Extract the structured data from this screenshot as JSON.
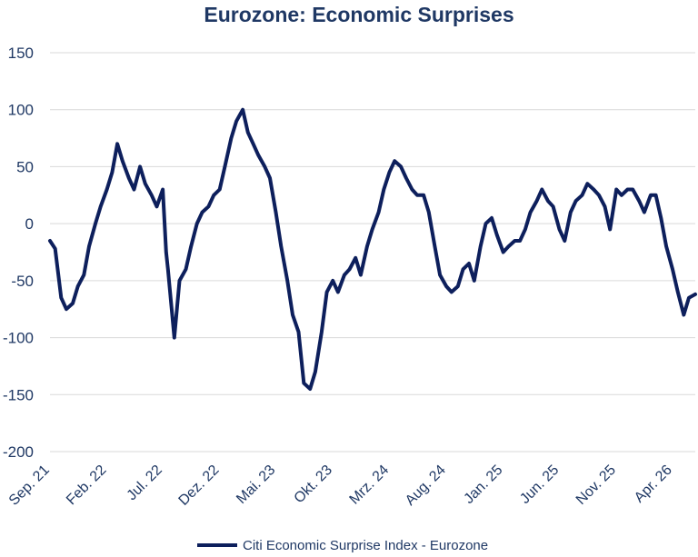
{
  "chart_data": {
    "type": "line",
    "title": "Eurozone: Economic Surprises",
    "xlabel": "",
    "ylabel": "",
    "ylim": [
      -200,
      150
    ],
    "yticks": [
      150,
      100,
      50,
      0,
      -50,
      -100,
      -150,
      -200
    ],
    "x_tick_labels": [
      "Sep. 21",
      "Feb. 22",
      "Jul. 22",
      "Dez. 22",
      "Mai. 23",
      "Okt. 23",
      "Mrz. 24",
      "Aug. 24",
      "Jan. 25",
      "Jun. 25",
      "Nov. 25",
      "Apr. 26"
    ],
    "x_range": [
      "2021-09",
      "2026-06"
    ],
    "grid": "horizontal",
    "legend_position": "bottom",
    "line_color": "#0d1f5c",
    "series": [
      {
        "name": "Citi Economic Surprise Index - Eurozone",
        "x": [
          "2021-09-01",
          "2021-09-15",
          "2021-10-01",
          "2021-10-15",
          "2021-11-01",
          "2021-11-15",
          "2021-12-01",
          "2021-12-15",
          "2022-01-01",
          "2022-01-15",
          "2022-02-01",
          "2022-02-15",
          "2022-03-01",
          "2022-03-15",
          "2022-04-01",
          "2022-04-15",
          "2022-05-01",
          "2022-05-15",
          "2022-06-01",
          "2022-06-15",
          "2022-07-01",
          "2022-07-10",
          "2022-07-15",
          "2022-08-01",
          "2022-08-15",
          "2022-09-01",
          "2022-09-15",
          "2022-10-01",
          "2022-10-15",
          "2022-11-01",
          "2022-11-15",
          "2022-12-01",
          "2022-12-15",
          "2023-01-01",
          "2023-01-15",
          "2023-02-01",
          "2023-02-15",
          "2023-03-01",
          "2023-03-15",
          "2023-04-01",
          "2023-04-15",
          "2023-05-01",
          "2023-05-15",
          "2023-06-01",
          "2023-06-15",
          "2023-07-01",
          "2023-07-15",
          "2023-08-01",
          "2023-08-15",
          "2023-09-01",
          "2023-09-15",
          "2023-10-01",
          "2023-10-15",
          "2023-11-01",
          "2023-11-15",
          "2023-12-01",
          "2023-12-15",
          "2024-01-01",
          "2024-01-15",
          "2024-02-01",
          "2024-02-15",
          "2024-03-01",
          "2024-03-15",
          "2024-04-01",
          "2024-04-15",
          "2024-05-01",
          "2024-05-15",
          "2024-06-01",
          "2024-06-15",
          "2024-07-01",
          "2024-07-15",
          "2024-08-01",
          "2024-08-15",
          "2024-09-01",
          "2024-09-15",
          "2024-10-01",
          "2024-10-15",
          "2024-11-01",
          "2024-11-15",
          "2024-12-01",
          "2024-12-15",
          "2025-01-01",
          "2025-01-15",
          "2025-02-01",
          "2025-02-15",
          "2025-03-01",
          "2025-03-15",
          "2025-04-01",
          "2025-04-15",
          "2025-05-01",
          "2025-05-15",
          "2025-06-01",
          "2025-06-15",
          "2025-07-01",
          "2025-07-15",
          "2025-08-01",
          "2025-08-15",
          "2025-09-01",
          "2025-09-15",
          "2025-10-01",
          "2025-10-15",
          "2025-11-01",
          "2025-11-15",
          "2025-12-01",
          "2025-12-15",
          "2026-01-01",
          "2026-01-15",
          "2026-02-01",
          "2026-02-15",
          "2026-03-01",
          "2026-03-15",
          "2026-04-01",
          "2026-04-15",
          "2026-05-01",
          "2026-05-15",
          "2026-06-01"
        ],
        "values": [
          -15,
          -22,
          -65,
          -75,
          -70,
          -55,
          -45,
          -20,
          0,
          15,
          30,
          45,
          70,
          55,
          40,
          30,
          50,
          35,
          25,
          15,
          30,
          -25,
          -40,
          -100,
          -50,
          -40,
          -20,
          0,
          10,
          15,
          25,
          30,
          50,
          75,
          90,
          100,
          80,
          70,
          60,
          50,
          40,
          10,
          -20,
          -50,
          -80,
          -95,
          -140,
          -145,
          -130,
          -95,
          -60,
          -50,
          -60,
          -45,
          -40,
          -30,
          -45,
          -20,
          -5,
          10,
          30,
          45,
          55,
          50,
          40,
          30,
          25,
          25,
          10,
          -20,
          -45,
          -55,
          -60,
          -55,
          -40,
          -35,
          -50,
          -20,
          0,
          5,
          -10,
          -25,
          -20,
          -15,
          -15,
          -5,
          10,
          20,
          30,
          20,
          15,
          -5,
          -15,
          10,
          20,
          25,
          35,
          30,
          25,
          15,
          -5,
          30,
          25,
          30,
          30,
          20,
          10,
          25,
          25,
          5,
          -20,
          -40,
          -60,
          -80,
          -65,
          -62
        ]
      }
    ]
  }
}
